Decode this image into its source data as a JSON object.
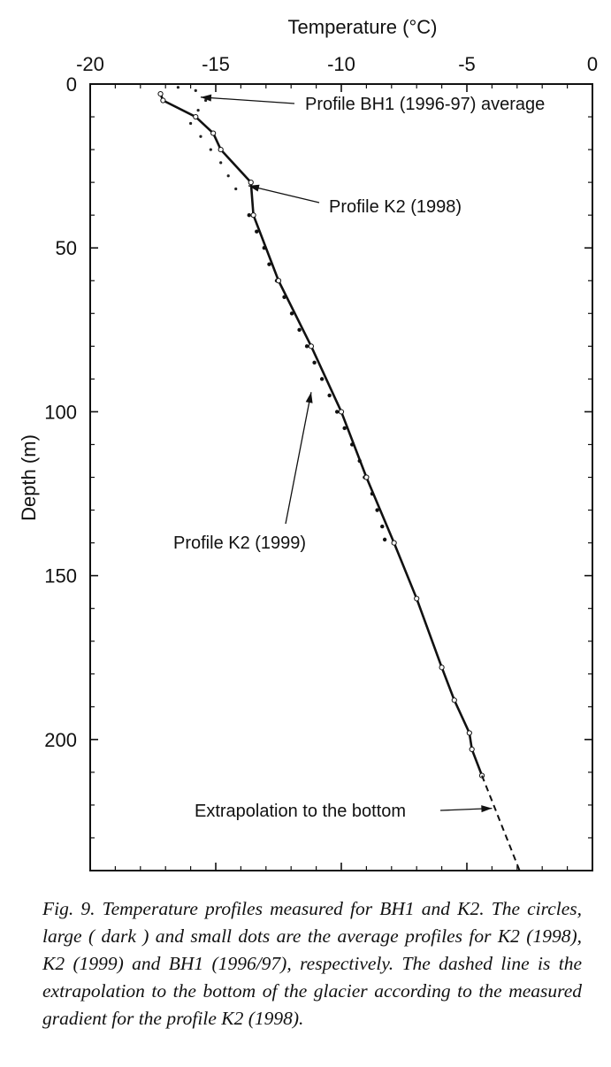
{
  "figure": {
    "caption": "Fig. 9. Temperature profiles measured for BH1 and K2. The circles, large ( dark ) and small dots are the average profiles for K2 (1998), K2 (1999) and BH1 (1996/97), respectively. The dashed line is the extrapolation to the bottom of the glacier according to the measured gradient for the profile K2 (1998)."
  },
  "chart_data": {
    "type": "line",
    "title": "",
    "xlabel": "Temperature (°C)",
    "ylabel": "Depth (m)",
    "x_axis_position": "top",
    "y_inverted": true,
    "xlim": [
      -20,
      0
    ],
    "ylim": [
      0,
      240
    ],
    "xticks": [
      -20,
      -15,
      -10,
      -5,
      0
    ],
    "xtick_labels": [
      "-20",
      "-15",
      "-10",
      "-5",
      "0"
    ],
    "yticks": [
      0,
      50,
      100,
      150,
      200
    ],
    "ytick_labels": [
      "0",
      "50",
      "100",
      "150",
      "200"
    ],
    "grid": false,
    "series": [
      {
        "name": "Profile K2 (1998)",
        "style": "solid line with open circles",
        "points": [
          {
            "x": -17.2,
            "y": 3
          },
          {
            "x": -17.1,
            "y": 5
          },
          {
            "x": -15.8,
            "y": 10
          },
          {
            "x": -15.1,
            "y": 15
          },
          {
            "x": -14.8,
            "y": 20
          },
          {
            "x": -13.6,
            "y": 30
          },
          {
            "x": -13.5,
            "y": 40
          },
          {
            "x": -12.5,
            "y": 60
          },
          {
            "x": -11.2,
            "y": 80
          },
          {
            "x": -10,
            "y": 100
          },
          {
            "x": -9,
            "y": 120
          },
          {
            "x": -7.9,
            "y": 140
          },
          {
            "x": -7,
            "y": 157
          },
          {
            "x": -6,
            "y": 178
          },
          {
            "x": -5.5,
            "y": 188
          },
          {
            "x": -4.9,
            "y": 198
          },
          {
            "x": -4.8,
            "y": 203
          },
          {
            "x": -4.4,
            "y": 211
          }
        ]
      },
      {
        "name": "Profile K2 (1999)",
        "style": "large dark dots",
        "points": [
          {
            "x": -13.6,
            "y": 40
          },
          {
            "x": -13.3,
            "y": 45
          },
          {
            "x": -13.0,
            "y": 50
          },
          {
            "x": -12.8,
            "y": 55
          },
          {
            "x": -12.5,
            "y": 60
          },
          {
            "x": -12.2,
            "y": 65
          },
          {
            "x": -11.9,
            "y": 70
          },
          {
            "x": -11.6,
            "y": 75
          },
          {
            "x": -11.3,
            "y": 80
          },
          {
            "x": -11.0,
            "y": 85
          },
          {
            "x": -10.7,
            "y": 90
          },
          {
            "x": -10.4,
            "y": 95
          },
          {
            "x": -10.1,
            "y": 100
          },
          {
            "x": -9.8,
            "y": 105
          },
          {
            "x": -9.5,
            "y": 110
          },
          {
            "x": -9.2,
            "y": 115
          },
          {
            "x": -9.0,
            "y": 120
          },
          {
            "x": -8.7,
            "y": 125
          },
          {
            "x": -8.5,
            "y": 130
          },
          {
            "x": -8.3,
            "y": 135
          },
          {
            "x": -8.2,
            "y": 139
          }
        ]
      },
      {
        "name": "Profile BH1 (1996-97) average",
        "style": "small dots",
        "points": [
          {
            "x": -17.2,
            "y": 3
          },
          {
            "x": -16.5,
            "y": 1
          },
          {
            "x": -15.8,
            "y": 2
          },
          {
            "x": -15.4,
            "y": 5
          },
          {
            "x": -15.7,
            "y": 8
          },
          {
            "x": -16.0,
            "y": 12
          },
          {
            "x": -15.6,
            "y": 16
          },
          {
            "x": -15.2,
            "y": 20
          },
          {
            "x": -14.8,
            "y": 24
          },
          {
            "x": -14.5,
            "y": 28
          },
          {
            "x": -14.2,
            "y": 32
          }
        ]
      },
      {
        "name": "Extrapolation to the bottom",
        "style": "dashed line",
        "points": [
          {
            "x": -4.4,
            "y": 211
          },
          {
            "x": -2.9,
            "y": 240
          }
        ]
      }
    ],
    "annotations": [
      {
        "text": "Profile BH1 (1996-97) average",
        "points_to": {
          "x": -15.6,
          "y": 4
        }
      },
      {
        "text": "Profile K2 (1998)",
        "points_to": {
          "x": -13.7,
          "y": 31
        }
      },
      {
        "text": "Profile K2 (1999)",
        "points_to": {
          "x": -11.2,
          "y": 94
        }
      },
      {
        "text": "Extrapolation to the bottom",
        "points_to": {
          "x": -4.0,
          "y": 221
        }
      }
    ]
  }
}
